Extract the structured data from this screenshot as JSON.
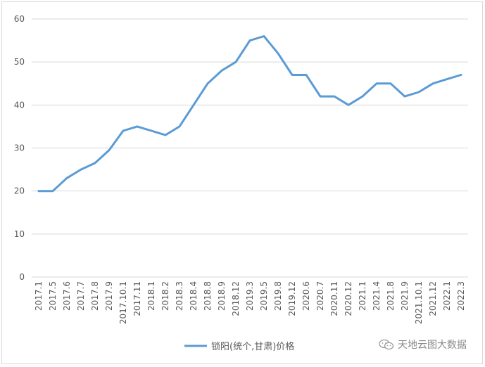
{
  "chart_data": {
    "type": "line",
    "categories": [
      "2017.1",
      "2017.5",
      "2017.6",
      "2017.7",
      "2017.8",
      "2017.9",
      "2017.10.1",
      "2017.11",
      "2018.1",
      "2018.2",
      "2018.3",
      "2018.4",
      "2018.8",
      "2018.9",
      "2018.12",
      "2019.3",
      "2019.5",
      "2019.8",
      "2019.12",
      "2020.6",
      "2020.7",
      "2020.11",
      "2020.12",
      "2021.1",
      "2021.4",
      "2021.8",
      "2021.9",
      "2021.10.1",
      "2021.12",
      "2022.1",
      "2022.3"
    ],
    "series": [
      {
        "name": "锁阳(统个,甘肃)价格",
        "values": [
          20,
          20,
          23,
          25,
          26.5,
          29.5,
          34,
          35,
          34,
          33,
          35,
          40,
          45,
          48,
          50,
          55,
          56,
          52,
          47,
          47,
          42,
          42,
          40,
          42,
          45,
          45,
          42,
          43,
          45,
          46,
          47
        ]
      }
    ],
    "ylim": [
      0,
      60
    ],
    "yticks": [
      0,
      10,
      20,
      30,
      40,
      50,
      60
    ],
    "grid": true,
    "legend_position": "bottom",
    "line_color": "#5b9bd5"
  },
  "watermark": "天地云图大数据"
}
